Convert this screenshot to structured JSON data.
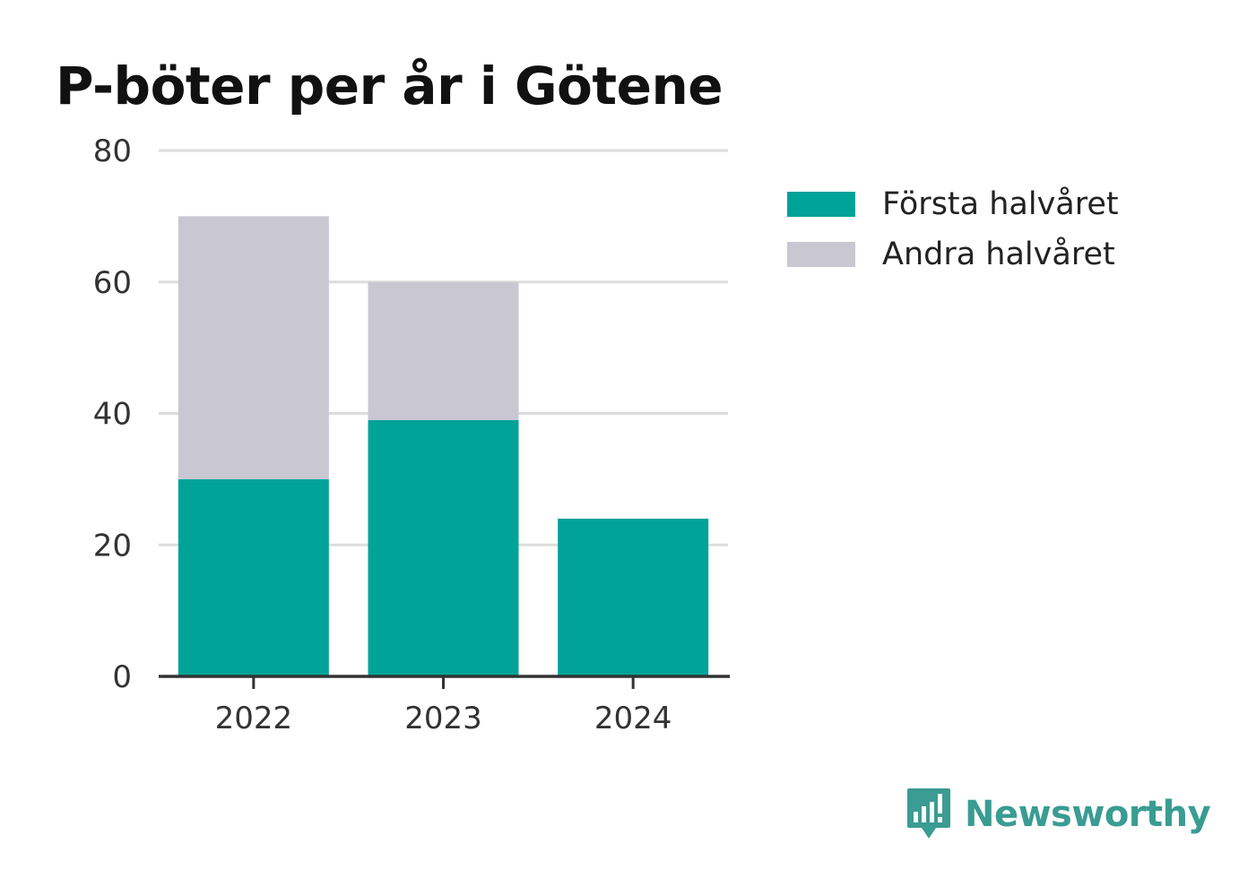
{
  "chart_data": {
    "type": "bar",
    "stacked": true,
    "title": "P-böter per år i Götene",
    "xlabel": "",
    "ylabel": "",
    "categories": [
      "2022",
      "2023",
      "2024"
    ],
    "series": [
      {
        "name": "Första halvåret",
        "values": [
          30,
          39,
          24
        ],
        "color": "#00a398"
      },
      {
        "name": "Andra halvåret",
        "values": [
          40,
          21,
          0
        ],
        "color": "#c8c7d2"
      }
    ],
    "ylim": [
      0,
      80
    ],
    "yticks": [
      0,
      20,
      40,
      60,
      80
    ],
    "grid": true,
    "legend_position": "right"
  },
  "brand": {
    "name": "Newsworthy",
    "icon": "newsworthy-logo-icon",
    "color": "#3a9c92"
  }
}
